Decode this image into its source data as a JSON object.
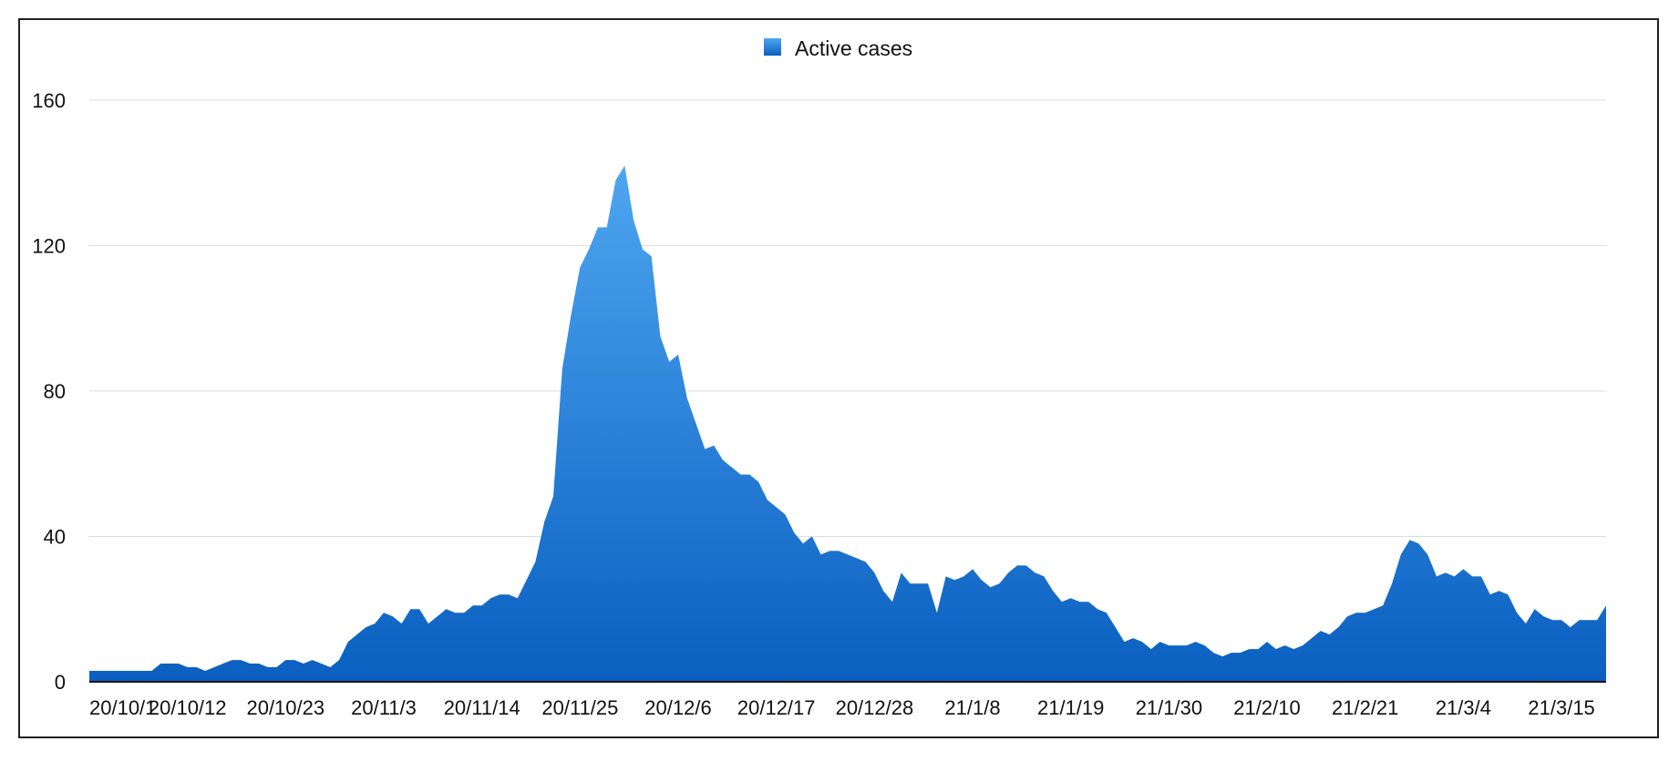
{
  "chart_data": {
    "type": "area",
    "title": "",
    "xlabel": "",
    "ylabel": "",
    "legend": {
      "position": "top-center",
      "entries": [
        "Active cases"
      ]
    },
    "ylim": [
      0,
      180
    ],
    "yticks": [
      0,
      40,
      80,
      120,
      160
    ],
    "grid": true,
    "x_start": "2020-10-01",
    "x_end": "2021-03-20",
    "xticks": [
      {
        "date": "2020-10-01",
        "label": "20/10/1"
      },
      {
        "date": "2020-10-12",
        "label": "20/10/12"
      },
      {
        "date": "2020-10-23",
        "label": "20/10/23"
      },
      {
        "date": "2020-11-03",
        "label": "20/11/3"
      },
      {
        "date": "2020-11-14",
        "label": "20/11/14"
      },
      {
        "date": "2020-11-25",
        "label": "20/11/25"
      },
      {
        "date": "2020-12-06",
        "label": "20/12/6"
      },
      {
        "date": "2020-12-17",
        "label": "20/12/17"
      },
      {
        "date": "2020-12-28",
        "label": "20/12/28"
      },
      {
        "date": "2021-01-08",
        "label": "21/1/8"
      },
      {
        "date": "2021-01-19",
        "label": "21/1/19"
      },
      {
        "date": "2021-01-30",
        "label": "21/1/30"
      },
      {
        "date": "2021-02-10",
        "label": "21/2/10"
      },
      {
        "date": "2021-02-21",
        "label": "21/2/21"
      },
      {
        "date": "2021-03-04",
        "label": "21/3/4"
      },
      {
        "date": "2021-03-15",
        "label": "21/3/15"
      }
    ],
    "colors": {
      "area_top": "#4ea6f0",
      "area_bottom": "#0a5fc0",
      "axis": "#111111",
      "grid": "#dddddd"
    },
    "series": [
      {
        "name": "Active cases",
        "values": [
          3,
          3,
          3,
          3,
          3,
          3,
          3,
          3,
          5,
          5,
          5,
          4,
          4,
          3,
          4,
          5,
          6,
          6,
          5,
          5,
          4,
          4,
          6,
          6,
          5,
          6,
          5,
          4,
          6,
          11,
          13,
          15,
          16,
          19,
          18,
          16,
          20,
          20,
          16,
          18,
          20,
          19,
          19,
          21,
          21,
          23,
          24,
          24,
          23,
          28,
          33,
          44,
          51,
          86,
          101,
          114,
          119,
          125,
          125,
          138,
          142,
          127,
          119,
          117,
          95,
          88,
          90,
          78,
          71,
          64,
          65,
          61,
          59,
          57,
          57,
          55,
          50,
          48,
          46,
          41,
          38,
          40,
          35,
          36,
          36,
          35,
          34,
          33,
          30,
          25,
          22,
          30,
          27,
          27,
          27,
          19,
          29,
          28,
          29,
          31,
          28,
          26,
          27,
          30,
          32,
          32,
          30,
          29,
          25,
          22,
          23,
          22,
          22,
          20,
          19,
          15,
          11,
          12,
          11,
          9,
          11,
          10,
          10,
          10,
          11,
          10,
          8,
          7,
          8,
          8,
          9,
          9,
          11,
          9,
          10,
          9,
          10,
          12,
          14,
          13,
          15,
          18,
          19,
          19,
          20,
          21,
          27,
          35,
          39,
          38,
          35,
          29,
          30,
          29,
          31,
          29,
          29,
          24,
          25,
          24,
          19,
          16,
          20,
          18,
          17,
          17,
          15,
          17,
          17,
          17,
          21
        ]
      }
    ]
  }
}
